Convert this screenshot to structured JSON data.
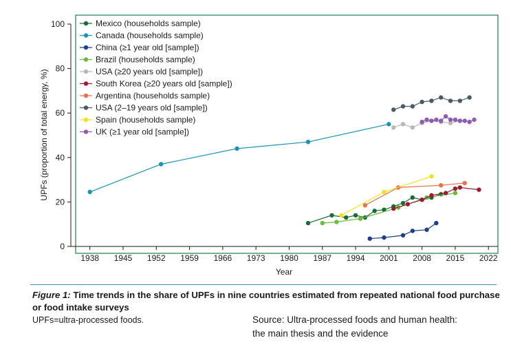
{
  "chart_data": {
    "type": "line",
    "title": "",
    "xlabel": "Year",
    "ylabel": "UPFs (proportion of total energy, %)",
    "xlim": [
      1935,
      2024
    ],
    "ylim": [
      0,
      100
    ],
    "xticks": [
      1938,
      1945,
      1952,
      1959,
      1966,
      1973,
      1980,
      1987,
      1994,
      2001,
      2008,
      2015,
      2022
    ],
    "yticks": [
      0,
      20,
      40,
      60,
      80,
      100
    ],
    "legend_position": "top-left",
    "series": [
      {
        "name": "Mexico (households sample)",
        "color": "#1a6b3a",
        "x": [
          1984,
          1989,
          1992,
          1994,
          1996,
          1998,
          2000,
          2002,
          2004,
          2006,
          2008,
          2010,
          2012
        ],
        "y": [
          10.5,
          14,
          13,
          14,
          13,
          16,
          16.5,
          18,
          19.5,
          22,
          21,
          22,
          23.5
        ]
      },
      {
        "name": "Canada (households sample)",
        "color": "#1893b9",
        "x": [
          1938,
          1953,
          1969,
          1984,
          2001
        ],
        "y": [
          24.5,
          37,
          44,
          47,
          55
        ]
      },
      {
        "name": "China (≥1 year old [sample])",
        "color": "#1f3d8f",
        "x": [
          1997,
          2000,
          2004,
          2006,
          2009,
          2011
        ],
        "y": [
          3.5,
          4,
          5,
          7,
          7.5,
          10.5
        ]
      },
      {
        "name": "Brazil (households sample)",
        "color": "#6dbb3a",
        "x": [
          1987,
          1990,
          1995,
          2003,
          2009,
          2015
        ],
        "y": [
          10.5,
          11,
          12.5,
          17.5,
          22,
          24
        ]
      },
      {
        "name": "USA (≥20 years old [sample])",
        "color": "#b8b8b8",
        "x": [
          2002,
          2004,
          2006,
          2008,
          2010,
          2012,
          2014,
          2016
        ],
        "y": [
          53.5,
          55,
          53.5,
          55.5,
          56.5,
          56,
          55.5,
          56.5
        ]
      },
      {
        "name": "South Korea (≥20 years old [sample])",
        "color": "#9e1b32",
        "x": [
          2002,
          2005,
          2008,
          2010,
          2013,
          2015,
          2016,
          2020
        ],
        "y": [
          17,
          19,
          21,
          23,
          24,
          26,
          26.5,
          25.5
        ]
      },
      {
        "name": "Argentina (households sample)",
        "color": "#e8734a",
        "x": [
          1996,
          2003,
          2012,
          2017
        ],
        "y": [
          18.5,
          26.5,
          27.5,
          28.5
        ]
      },
      {
        "name": "USA (2–19 years old [sample])",
        "color": "#4a5a66",
        "x": [
          2002,
          2004,
          2006,
          2008,
          2010,
          2012,
          2014,
          2016,
          2018
        ],
        "y": [
          61.5,
          63,
          63,
          65,
          65.5,
          67,
          65.5,
          65.5,
          67
        ]
      },
      {
        "name": "Spain (households sample)",
        "color": "#f5e11a",
        "x": [
          1991,
          2000,
          2010
        ],
        "y": [
          14,
          24.5,
          31.5
        ]
      },
      {
        "name": "UK (≥1 year old [sample])",
        "color": "#8e5bb5",
        "x": [
          2008,
          2009,
          2010,
          2011,
          2012,
          2013,
          2014,
          2015,
          2016,
          2017,
          2018,
          2019
        ],
        "y": [
          56,
          57,
          56.5,
          57,
          56.5,
          58.5,
          57,
          57,
          56.5,
          56.5,
          56,
          57
        ]
      }
    ]
  },
  "caption": {
    "label": "Figure 1:",
    "text": " Time trends in the share of UPFs in nine countries estimated from repeated national food purchase or food intake surveys",
    "abbreviation": "UPFs=ultra-processed foods.",
    "source_line1": "Source: Ultra-processed foods and human health:",
    "source_line2": "the main thesis and the evidence"
  }
}
